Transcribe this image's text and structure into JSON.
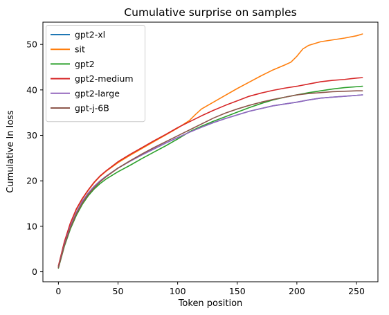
{
  "chart_data": {
    "type": "line",
    "title": "Cumulative surprise on samples",
    "xlabel": "Token position",
    "ylabel": "Cumulative ln loss",
    "xlim": [
      -13,
      268
    ],
    "ylim": [
      -2.2,
      54.9
    ],
    "xticks": [
      0,
      50,
      100,
      150,
      200,
      250
    ],
    "yticks": [
      0,
      10,
      20,
      30,
      40,
      50
    ],
    "grid": false,
    "legend_position": "upper-left",
    "series": [
      {
        "name": "gpt2-xl",
        "color": "#1f77b4",
        "points": [
          [
            0,
            1.0
          ],
          [
            5,
            6.0
          ],
          [
            10,
            10.0
          ],
          [
            15,
            13.0
          ],
          [
            20,
            15.5
          ],
          [
            25,
            17.3
          ],
          [
            30,
            18.8
          ],
          [
            35,
            20.0
          ],
          [
            40,
            21.0
          ],
          [
            50,
            22.8
          ],
          [
            60,
            24.3
          ],
          [
            70,
            25.7
          ],
          [
            80,
            27.0
          ],
          [
            90,
            28.3
          ],
          [
            100,
            29.5
          ],
          [
            110,
            30.7
          ],
          [
            120,
            31.8
          ],
          [
            130,
            32.8
          ],
          [
            140,
            33.7
          ],
          [
            150,
            34.5
          ],
          [
            160,
            35.3
          ],
          [
            170,
            35.9
          ],
          [
            180,
            36.5
          ],
          [
            190,
            36.9
          ],
          [
            200,
            37.3
          ],
          [
            210,
            37.8
          ],
          [
            220,
            38.2
          ],
          [
            230,
            38.4
          ],
          [
            240,
            38.6
          ],
          [
            250,
            38.8
          ],
          [
            255,
            38.9
          ]
        ]
      },
      {
        "name": "sit",
        "color": "#ff7f0e",
        "points": [
          [
            0,
            1.2
          ],
          [
            5,
            6.5
          ],
          [
            10,
            10.6
          ],
          [
            15,
            13.7
          ],
          [
            20,
            16.0
          ],
          [
            25,
            17.9
          ],
          [
            30,
            19.6
          ],
          [
            35,
            21.0
          ],
          [
            40,
            22.1
          ],
          [
            50,
            24.0
          ],
          [
            60,
            25.6
          ],
          [
            70,
            27.1
          ],
          [
            80,
            28.6
          ],
          [
            90,
            30.1
          ],
          [
            100,
            31.6
          ],
          [
            110,
            33.3
          ],
          [
            115,
            34.6
          ],
          [
            120,
            35.8
          ],
          [
            130,
            37.3
          ],
          [
            140,
            38.8
          ],
          [
            150,
            40.3
          ],
          [
            160,
            41.7
          ],
          [
            170,
            43.1
          ],
          [
            180,
            44.4
          ],
          [
            190,
            45.5
          ],
          [
            195,
            46.1
          ],
          [
            200,
            47.4
          ],
          [
            205,
            49.0
          ],
          [
            210,
            49.8
          ],
          [
            220,
            50.6
          ],
          [
            230,
            51.0
          ],
          [
            240,
            51.4
          ],
          [
            250,
            51.9
          ],
          [
            255,
            52.3
          ]
        ]
      },
      {
        "name": "gpt2",
        "color": "#2ca02c",
        "points": [
          [
            0,
            0.8
          ],
          [
            5,
            5.6
          ],
          [
            10,
            9.4
          ],
          [
            15,
            12.4
          ],
          [
            20,
            14.8
          ],
          [
            25,
            16.7
          ],
          [
            30,
            18.2
          ],
          [
            35,
            19.4
          ],
          [
            40,
            20.4
          ],
          [
            50,
            22.0
          ],
          [
            60,
            23.4
          ],
          [
            70,
            24.9
          ],
          [
            80,
            26.3
          ],
          [
            90,
            27.7
          ],
          [
            100,
            29.2
          ],
          [
            110,
            30.8
          ],
          [
            120,
            32.0
          ],
          [
            130,
            33.1
          ],
          [
            140,
            34.1
          ],
          [
            150,
            35.1
          ],
          [
            160,
            36.1
          ],
          [
            170,
            37.0
          ],
          [
            180,
            37.8
          ],
          [
            190,
            38.4
          ],
          [
            200,
            38.9
          ],
          [
            210,
            39.4
          ],
          [
            220,
            39.8
          ],
          [
            230,
            40.2
          ],
          [
            240,
            40.5
          ],
          [
            250,
            40.7
          ],
          [
            255,
            40.8
          ]
        ]
      },
      {
        "name": "gpt2-medium",
        "color": "#d62728",
        "points": [
          [
            0,
            1.3
          ],
          [
            5,
            6.6
          ],
          [
            10,
            10.7
          ],
          [
            15,
            13.8
          ],
          [
            20,
            16.1
          ],
          [
            25,
            18.0
          ],
          [
            30,
            19.7
          ],
          [
            35,
            21.1
          ],
          [
            40,
            22.2
          ],
          [
            50,
            24.2
          ],
          [
            60,
            25.8
          ],
          [
            70,
            27.3
          ],
          [
            80,
            28.8
          ],
          [
            90,
            30.2
          ],
          [
            100,
            31.7
          ],
          [
            110,
            33.0
          ],
          [
            120,
            34.3
          ],
          [
            130,
            35.5
          ],
          [
            140,
            36.6
          ],
          [
            150,
            37.6
          ],
          [
            160,
            38.6
          ],
          [
            170,
            39.3
          ],
          [
            180,
            39.9
          ],
          [
            190,
            40.4
          ],
          [
            200,
            40.8
          ],
          [
            210,
            41.3
          ],
          [
            220,
            41.8
          ],
          [
            230,
            42.1
          ],
          [
            240,
            42.3
          ],
          [
            250,
            42.6
          ],
          [
            255,
            42.7
          ]
        ]
      },
      {
        "name": "gpt2-large",
        "color": "#9467bd",
        "points": [
          [
            0,
            1.0
          ],
          [
            5,
            6.0
          ],
          [
            10,
            10.0
          ],
          [
            15,
            13.0
          ],
          [
            20,
            15.5
          ],
          [
            25,
            17.3
          ],
          [
            30,
            18.8
          ],
          [
            35,
            20.0
          ],
          [
            40,
            21.0
          ],
          [
            50,
            22.8
          ],
          [
            60,
            24.3
          ],
          [
            70,
            25.7
          ],
          [
            80,
            27.0
          ],
          [
            90,
            28.3
          ],
          [
            100,
            29.5
          ],
          [
            110,
            30.7
          ],
          [
            120,
            31.8
          ],
          [
            130,
            32.8
          ],
          [
            140,
            33.7
          ],
          [
            150,
            34.5
          ],
          [
            160,
            35.3
          ],
          [
            170,
            35.9
          ],
          [
            180,
            36.5
          ],
          [
            190,
            36.9
          ],
          [
            200,
            37.3
          ],
          [
            210,
            37.8
          ],
          [
            220,
            38.2
          ],
          [
            230,
            38.4
          ],
          [
            240,
            38.6
          ],
          [
            250,
            38.8
          ],
          [
            255,
            38.9
          ]
        ]
      },
      {
        "name": "gpt-j-6B",
        "color": "#8c564b",
        "points": [
          [
            0,
            0.9
          ],
          [
            5,
            5.8
          ],
          [
            10,
            9.7
          ],
          [
            15,
            12.7
          ],
          [
            20,
            15.1
          ],
          [
            25,
            17.0
          ],
          [
            30,
            18.5
          ],
          [
            35,
            19.8
          ],
          [
            40,
            20.9
          ],
          [
            50,
            22.8
          ],
          [
            60,
            24.4
          ],
          [
            70,
            25.9
          ],
          [
            80,
            27.3
          ],
          [
            90,
            28.6
          ],
          [
            100,
            29.9
          ],
          [
            110,
            31.2
          ],
          [
            120,
            32.5
          ],
          [
            130,
            33.8
          ],
          [
            140,
            34.9
          ],
          [
            150,
            35.8
          ],
          [
            160,
            36.6
          ],
          [
            170,
            37.3
          ],
          [
            180,
            37.9
          ],
          [
            190,
            38.4
          ],
          [
            200,
            38.9
          ],
          [
            210,
            39.2
          ],
          [
            220,
            39.4
          ],
          [
            230,
            39.6
          ],
          [
            240,
            39.7
          ],
          [
            250,
            39.8
          ],
          [
            255,
            39.8
          ]
        ]
      }
    ]
  }
}
